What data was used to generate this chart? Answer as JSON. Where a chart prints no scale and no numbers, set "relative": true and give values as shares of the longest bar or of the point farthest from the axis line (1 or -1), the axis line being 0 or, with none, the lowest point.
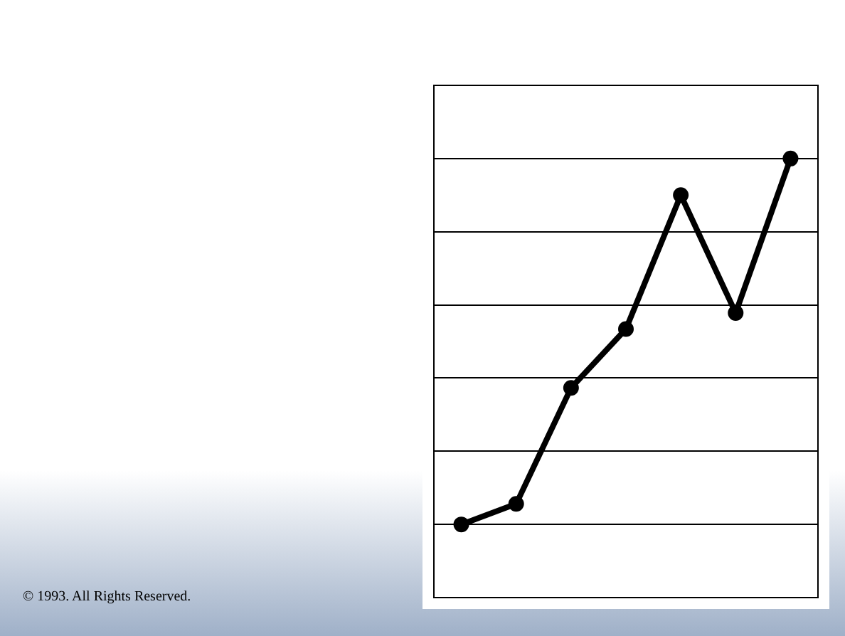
{
  "chart_data": {
    "type": "line",
    "relative": true,
    "categories": [
      null,
      null,
      null,
      null,
      null,
      null,
      null
    ],
    "series": [
      {
        "color": "#000000",
        "values": [
          0,
          0.056,
          0.373,
          0.534,
          0.9,
          0.578,
          1
        ]
      }
    ],
    "marker": "circle",
    "line_style": "solid",
    "grid": "y",
    "legend": false,
    "annotations": [
      "© 1993. All Rights Reserved."
    ]
  }
}
